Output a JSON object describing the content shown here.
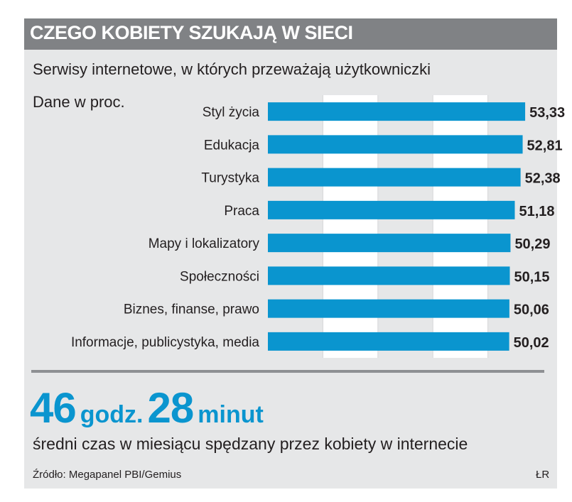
{
  "header": {
    "title": "CZEGO KOBIETY SZUKAJĄ W SIECI",
    "subtitle": "Serwisy internetowe, w których przeważają użytkowniczki",
    "unit_note": "Dane w proc."
  },
  "colors": {
    "bar": "#0a95cf",
    "title_bar": "#808285",
    "panel": "#e6e7e8",
    "accent_text": "#0a95cf"
  },
  "chart_data": {
    "type": "bar",
    "orientation": "horizontal",
    "title": "Serwisy internetowe, w których przeważają użytkowniczki",
    "unit": "Dane w proc.",
    "categories": [
      "Styl życia",
      "Edukacja",
      "Turystyka",
      "Praca",
      "Mapy i lokalizatory",
      "Społeczności",
      "Biznes, finanse, prawo",
      "Informacje, publicystyka, media"
    ],
    "values": [
      53.33,
      52.81,
      52.38,
      51.18,
      50.29,
      50.15,
      50.06,
      50.02
    ],
    "value_labels": [
      "53,33",
      "52,81",
      "52,38",
      "51,18",
      "50,29",
      "50,15",
      "50,06",
      "50,02"
    ],
    "xlim": [
      0,
      57
    ],
    "grid": true
  },
  "highlight": {
    "hours": "46",
    "hours_unit": "godz.",
    "minutes": "28",
    "minutes_unit": "minut",
    "caption": "średni czas w miesiącu spędzany przez kobiety w internecie"
  },
  "footer": {
    "source": "Źródło: Megapanel PBI/Gemius",
    "author": "ŁR"
  }
}
